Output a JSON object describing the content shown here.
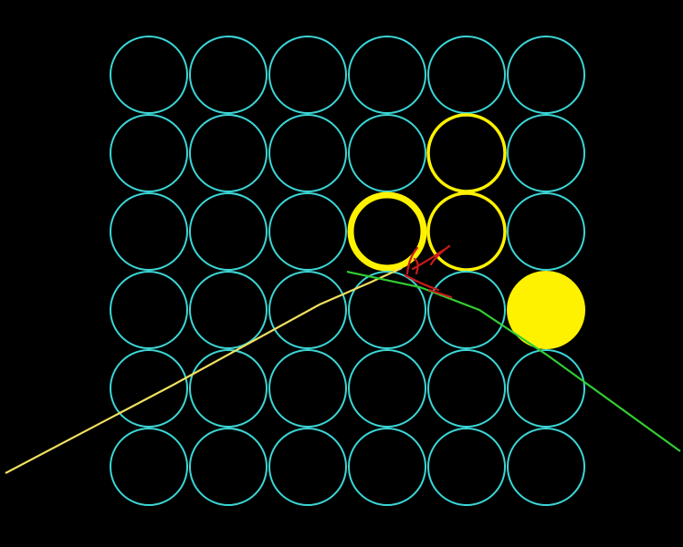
{
  "display": {
    "background_color": "#000000"
  },
  "detector": {
    "rows": 6,
    "cols": 6,
    "cell_color": "#3cd6d6",
    "hit_color": "#fff200",
    "hits": [
      {
        "row": 1,
        "col": 4,
        "style": "ring"
      },
      {
        "row": 2,
        "col": 3,
        "style": "thick-ring"
      },
      {
        "row": 2,
        "col": 4,
        "style": "ring"
      },
      {
        "row": 3,
        "col": 5,
        "style": "filled"
      }
    ]
  },
  "tracks": [
    {
      "name": "yellow-track",
      "color": "#f0e060"
    },
    {
      "name": "green-track",
      "color": "#33cc33"
    },
    {
      "name": "red-tracks",
      "color": "#cc1a1a"
    }
  ]
}
